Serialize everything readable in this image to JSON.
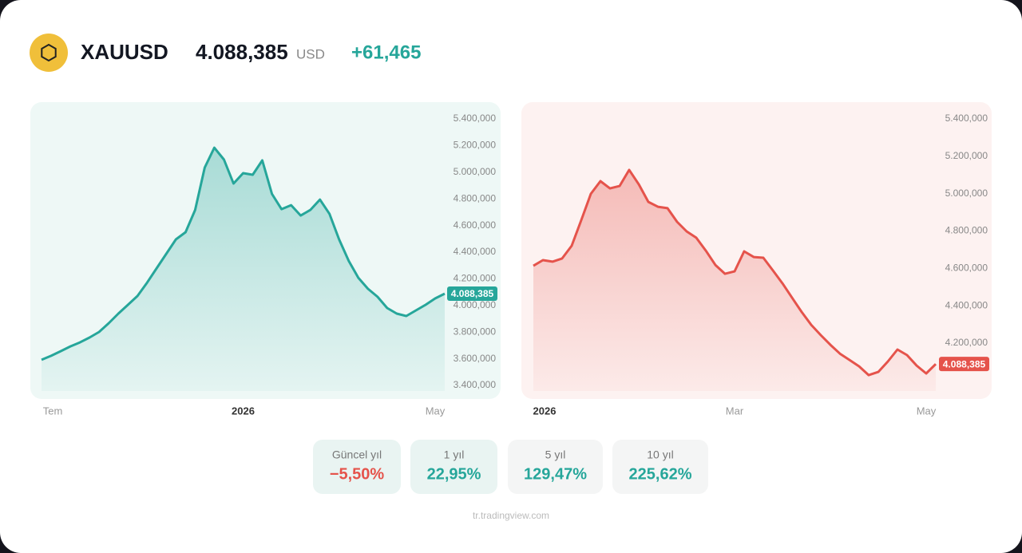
{
  "header": {
    "symbol": "XAUUSD",
    "price": "4.088,385",
    "currency": "USD",
    "change": "+61,465"
  },
  "chart_data": [
    {
      "type": "line",
      "color": "#26a69a",
      "background": "#eef8f6",
      "categories": [
        "Tem",
        null,
        null,
        null,
        null,
        null,
        null,
        null,
        null,
        null,
        null,
        null,
        null,
        null,
        null,
        null,
        null,
        null,
        null,
        null,
        null,
        "2026",
        null,
        null,
        null,
        null,
        null,
        null,
        null,
        null,
        null,
        null,
        null,
        null,
        null,
        null,
        null,
        null,
        null,
        null,
        null,
        "May",
        null
      ],
      "values": [
        3592,
        3622,
        3657,
        3693,
        3723,
        3759,
        3801,
        3867,
        3939,
        4005,
        4071,
        4172,
        4280,
        4388,
        4496,
        4550,
        4717,
        5035,
        5184,
        5095,
        4915,
        4993,
        4981,
        5089,
        4837,
        4723,
        4753,
        4675,
        4717,
        4795,
        4687,
        4496,
        4334,
        4208,
        4125,
        4065,
        3981,
        3939,
        3921,
        3963,
        4005,
        4053,
        4088.385
      ],
      "last_label": "4.088,385",
      "ylim": [
        3358,
        5514
      ],
      "yticks": [
        {
          "value": 5400,
          "label": "5.400,000"
        },
        {
          "value": 5200,
          "label": "5.200,000"
        },
        {
          "value": 5000,
          "label": "5.000,000"
        },
        {
          "value": 4800,
          "label": "4.800,000"
        },
        {
          "value": 4600,
          "label": "4.600,000"
        },
        {
          "value": 4400,
          "label": "4.400,000"
        },
        {
          "value": 4200,
          "label": "4.200,000"
        },
        {
          "value": 4000,
          "label": "4.000,000"
        },
        {
          "value": 3800,
          "label": "3.800,000"
        },
        {
          "value": 3600,
          "label": "3.600,000"
        },
        {
          "value": 3400,
          "label": "3.400,000"
        }
      ]
    },
    {
      "type": "line",
      "color": "#e5534b",
      "background": "#fdf2f1",
      "categories": [
        "2026",
        null,
        null,
        null,
        null,
        null,
        null,
        null,
        null,
        null,
        null,
        null,
        null,
        null,
        null,
        null,
        null,
        null,
        null,
        null,
        null,
        "Mar",
        null,
        null,
        null,
        null,
        null,
        null,
        null,
        null,
        null,
        null,
        null,
        null,
        null,
        null,
        null,
        null,
        null,
        null,
        null,
        "May",
        null
      ],
      "values": [
        4614,
        4644,
        4636,
        4653,
        4721,
        4858,
        4999,
        5067,
        5028,
        5041,
        5127,
        5050,
        4956,
        4930,
        4922,
        4849,
        4798,
        4764,
        4695,
        4618,
        4571,
        4584,
        4691,
        4661,
        4657,
        4589,
        4520,
        4443,
        4367,
        4298,
        4243,
        4191,
        4144,
        4110,
        4076,
        4029,
        4046,
        4102,
        4166,
        4136,
        4080,
        4038,
        4088.385
      ],
      "last_label": "4.088,385",
      "ylim": [
        3944,
        5481
      ],
      "yticks": [
        {
          "value": 5400,
          "label": "5.400,000"
        },
        {
          "value": 5200,
          "label": "5.200,000"
        },
        {
          "value": 5000,
          "label": "5.000,000"
        },
        {
          "value": 4800,
          "label": "4.800,000"
        },
        {
          "value": 4600,
          "label": "4.600,000"
        },
        {
          "value": 4400,
          "label": "4.400,000"
        },
        {
          "value": 4200,
          "label": "4.200,000"
        }
      ]
    }
  ],
  "periods": [
    {
      "label": "Güncel yıl",
      "value": "−5,50%",
      "color": "#e5534b"
    },
    {
      "label": "1 yıl",
      "value": "22,95%",
      "color": "#26a69a"
    },
    {
      "label": "5 yıl",
      "value": "129,47%",
      "color": "#26a69a"
    },
    {
      "label": "10 yıl",
      "value": "225,62%",
      "color": "#26a69a"
    }
  ],
  "footer": "tr.tradingview.com"
}
